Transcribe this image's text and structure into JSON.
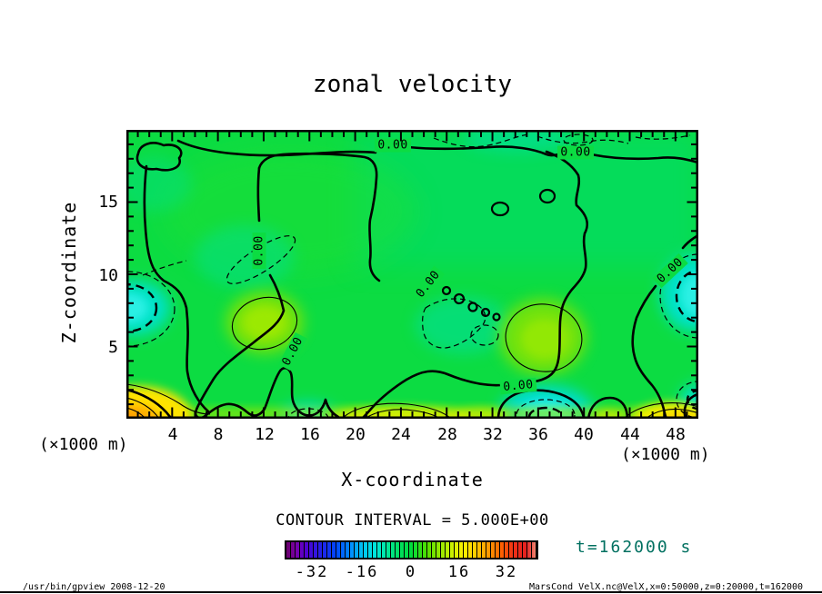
{
  "title": "zonal velocity",
  "axes": {
    "x": {
      "label": "X-coordinate",
      "unit_left": "(×1000 m)",
      "unit_right": "(×1000 m)",
      "ticks": [
        "4",
        "8",
        "12",
        "16",
        "20",
        "24",
        "28",
        "32",
        "36",
        "40",
        "44",
        "48"
      ]
    },
    "z": {
      "label": "Z-coordinate",
      "ticks": [
        "5",
        "10",
        "15"
      ]
    }
  },
  "contour": {
    "label": "0.00",
    "interval_text": "CONTOUR INTERVAL = 5.000E+00"
  },
  "colorbar": {
    "ticks": [
      "-32",
      "-16",
      "0",
      "16",
      "32"
    ]
  },
  "time_label": "t=162000 s",
  "footer": {
    "left": "/usr/bin/gpview  2008-12-20",
    "right": "MarsCond_VelX.nc@VelX,x=0:50000,z=0:20000,t=162000"
  },
  "chart_data": {
    "type": "heatmap",
    "subtype": "filled-contour",
    "title": "zonal velocity",
    "variable": "VelX from MarsCond_VelX.nc",
    "xlabel": "X-coordinate (×1000 m)",
    "ylabel": "Z-coordinate (×1000 m)",
    "xlim_m": [
      0,
      50000
    ],
    "zlim_m": [
      0,
      20000
    ],
    "x_ticks": [
      4,
      8,
      12,
      16,
      20,
      24,
      28,
      32,
      36,
      40,
      44,
      48
    ],
    "z_ticks": [
      5,
      10,
      15
    ],
    "time_seconds": 162000,
    "contour_interval": 5.0,
    "labeled_contour_value": 0.0,
    "contour_style": {
      "positive": "thin solid",
      "zero": "thick solid",
      "negative": "dashed"
    },
    "colorbar": {
      "orientation": "horizontal",
      "ticks": [
        -32,
        -16,
        0,
        16,
        32
      ],
      "range_approx": [
        -42,
        42
      ],
      "palette": [
        "purple",
        "blue",
        "cyan",
        "green",
        "yellow",
        "orange",
        "red",
        "salmon"
      ]
    },
    "field_summary": "Zonal velocity is mostly weak (|u|<5, green) over the interior; the 0.00 contour meanders across the whole domain. Extremes are concentrated near the bottom boundary and side walls.",
    "notable_regions": [
      {
        "x_m": [
          0,
          4000
        ],
        "z_m": [
          0,
          1500
        ],
        "value_approx": "+10 to +20",
        "appearance": "yellow-orange maximum in bottom-left corner"
      },
      {
        "x_m": [
          0,
          3500
        ],
        "z_m": [
          3500,
          6500
        ],
        "value_approx": "-10",
        "appearance": "cyan minimum at left wall"
      },
      {
        "x_m": [
          12000,
          19000
        ],
        "z_m": [
          16000,
          20000
        ],
        "value_approx": "-5",
        "appearance": "weak negative pocket near top"
      },
      {
        "x_m": [
          13000,
          18500
        ],
        "z_m": [
          0,
          1200
        ],
        "value_approx": "-5 to -10",
        "appearance": "small cyan pocket at bottom"
      },
      {
        "x_m": [
          33000,
          41000
        ],
        "z_m": [
          0,
          2500
        ],
        "value_approx": "-10 to -15",
        "appearance": "cyan minimum at bottom center-right"
      },
      {
        "x_m": [
          46000,
          50000
        ],
        "z_m": [
          7000,
          12000
        ],
        "value_approx": "-10",
        "appearance": "cyan minimum at right wall"
      },
      {
        "x_m": [
          19000,
          30000
        ],
        "z_m": [
          0,
          1500
        ],
        "value_approx": "+5 to +10",
        "appearance": "yellow band along bottom"
      },
      {
        "x_m": [
          45000,
          50000
        ],
        "z_m": [
          0,
          1500
        ],
        "value_approx": "+5 to +10",
        "appearance": "yellow patch bottom-right corner"
      },
      {
        "x_m": [
          8000,
          15000
        ],
        "z_m": [
          3000,
          7000
        ],
        "value_approx": "+5",
        "appearance": "yellow-green pocket"
      },
      {
        "x_m": [
          33000,
          40000
        ],
        "z_m": [
          3000,
          7500
        ],
        "value_approx": "+5",
        "appearance": "yellow-green pocket"
      }
    ]
  }
}
